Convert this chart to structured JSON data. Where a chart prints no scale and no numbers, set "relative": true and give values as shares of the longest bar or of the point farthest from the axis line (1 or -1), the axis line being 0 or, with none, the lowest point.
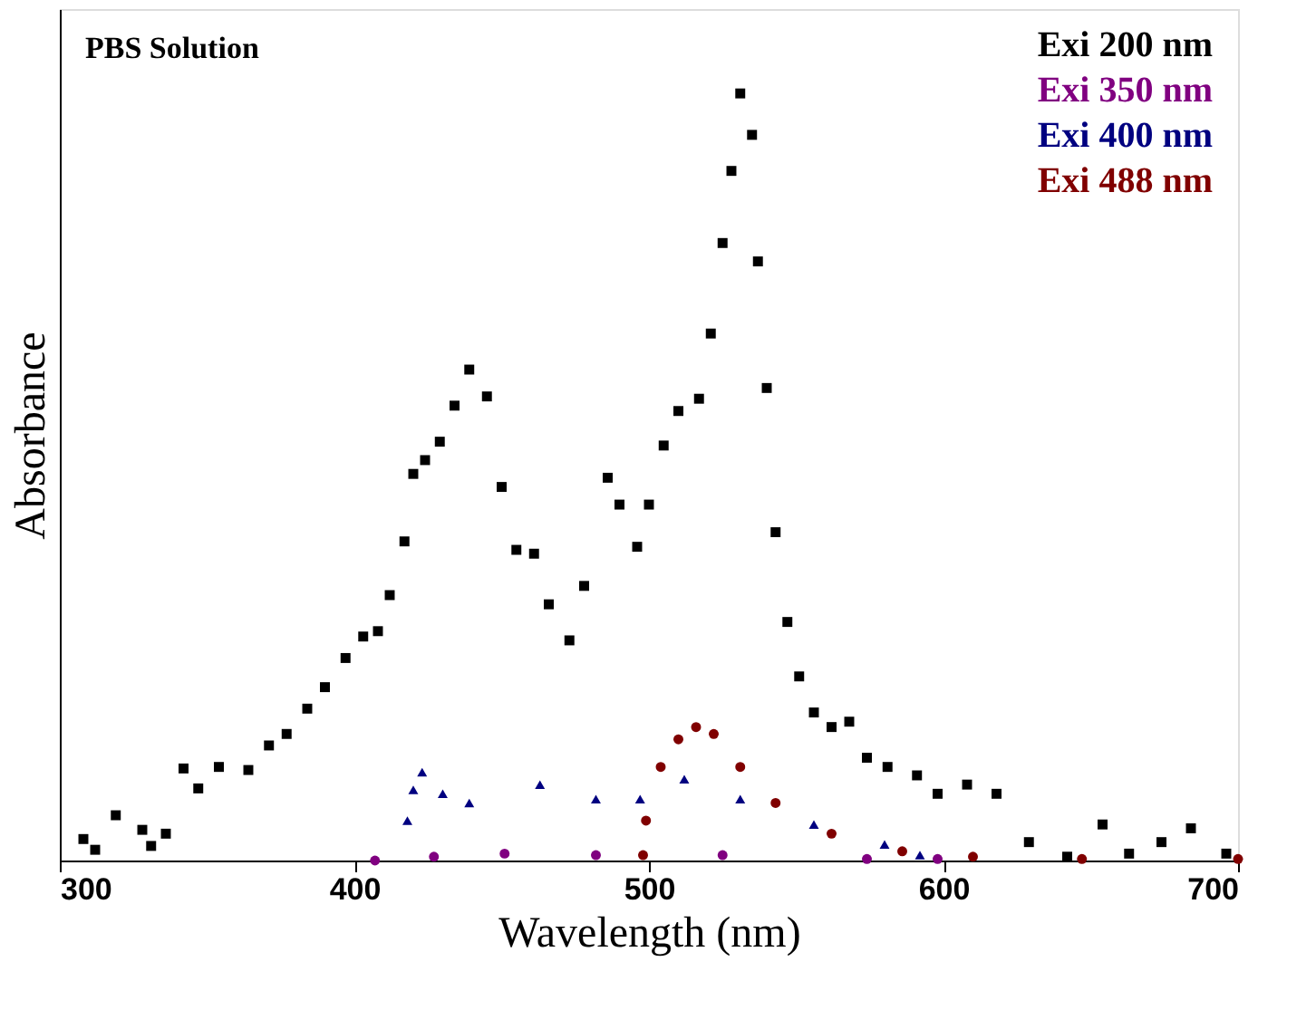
{
  "chart_data": {
    "type": "scatter",
    "xlabel": "Wavelength (nm)",
    "ylabel": "Absorbance",
    "relative": true,
    "xlim": [
      300,
      700
    ],
    "xticks": [
      300,
      400,
      500,
      600,
      700
    ],
    "legend": "top right",
    "grid": false,
    "annotations": [
      "PBS Solution"
    ],
    "series": [
      {
        "name": "Exi 200 nm",
        "color": "#000000",
        "marker": "square",
        "x": [
          308,
          312,
          319,
          328,
          331,
          336,
          342,
          347,
          354,
          364,
          371,
          377,
          384,
          390,
          397,
          403,
          408,
          412,
          417,
          420,
          424,
          429,
          434,
          439,
          445,
          450,
          455,
          461,
          466,
          473,
          478,
          486,
          490,
          496,
          500,
          505,
          510,
          517,
          521,
          525,
          528,
          531,
          535,
          537,
          540,
          543,
          547,
          551,
          556,
          562,
          568,
          574,
          581,
          591,
          598,
          608,
          618,
          629,
          642,
          654,
          663,
          674,
          684,
          696
        ],
        "values": [
          0.028,
          0.014,
          0.059,
          0.04,
          0.019,
          0.035,
          0.12,
          0.094,
          0.122,
          0.118,
          0.15,
          0.165,
          0.198,
          0.226,
          0.264,
          0.292,
          0.299,
          0.346,
          0.416,
          0.504,
          0.522,
          0.546,
          0.593,
          0.64,
          0.605,
          0.487,
          0.405,
          0.4,
          0.334,
          0.287,
          0.358,
          0.499,
          0.464,
          0.409,
          0.464,
          0.541,
          0.586,
          0.602,
          0.687,
          0.805,
          0.899,
          1.0,
          0.946,
          0.781,
          0.616,
          0.428,
          0.311,
          0.24,
          0.193,
          0.174,
          0.181,
          0.134,
          0.122,
          0.111,
          0.087,
          0.099,
          0.087,
          0.024,
          0.005,
          0.047,
          0.009,
          0.024,
          0.042,
          0.009
        ]
      },
      {
        "name": "Exi 350 nm",
        "color": "#800080",
        "marker": "circle",
        "x": [
          407,
          427,
          451,
          482,
          525,
          574,
          598
        ],
        "values": [
          0.0,
          0.005,
          0.009,
          0.007,
          0.007,
          0.002,
          0.002
        ]
      },
      {
        "name": "Exi 400 nm",
        "color": "#000080",
        "marker": "triangle",
        "x": [
          418,
          420,
          423,
          430,
          439,
          463,
          482,
          497,
          512,
          531,
          556,
          580,
          592
        ],
        "values": [
          0.052,
          0.092,
          0.115,
          0.087,
          0.075,
          0.099,
          0.08,
          0.08,
          0.106,
          0.08,
          0.047,
          0.021,
          0.007
        ]
      },
      {
        "name": "Exi 488 nm",
        "color": "#800000",
        "marker": "circle",
        "x": [
          498,
          499,
          504,
          510,
          516,
          522,
          531,
          543,
          562,
          586,
          610,
          647,
          700
        ],
        "values": [
          0.007,
          0.052,
          0.122,
          0.158,
          0.174,
          0.165,
          0.122,
          0.075,
          0.035,
          0.012,
          0.005,
          0.002,
          0.002
        ]
      }
    ]
  }
}
